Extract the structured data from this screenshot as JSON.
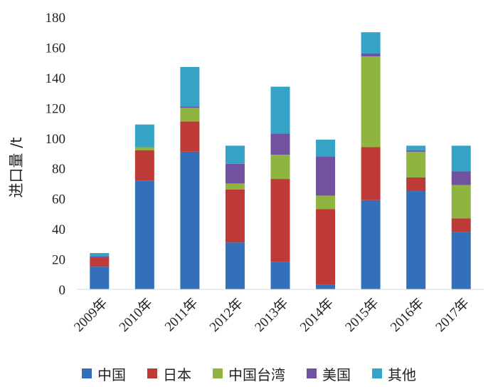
{
  "chart_data": {
    "type": "bar",
    "stacked": true,
    "ylabel": "进口量 /t",
    "ylim": [
      0,
      180
    ],
    "yticks": [
      0,
      20,
      40,
      60,
      80,
      100,
      120,
      140,
      160,
      180
    ],
    "categories": [
      "2009年",
      "2010年",
      "2011年",
      "2012年",
      "2013年",
      "2014年",
      "2015年",
      "2016年",
      "2017年"
    ],
    "series": [
      {
        "name": "中国",
        "color": "#3470BA",
        "values": [
          15,
          72,
          91,
          31,
          18,
          3,
          59,
          65,
          38
        ]
      },
      {
        "name": "日本",
        "color": "#BE3A36",
        "values": [
          6,
          20,
          20,
          35,
          55,
          50,
          35,
          9,
          9
        ]
      },
      {
        "name": "中国台湾",
        "color": "#8FB43F",
        "values": [
          0,
          2,
          9,
          4,
          16,
          9,
          60,
          17,
          22
        ]
      },
      {
        "name": "美国",
        "color": "#7152A0",
        "values": [
          1,
          0,
          1,
          13,
          14,
          26,
          2,
          1,
          9
        ]
      },
      {
        "name": "其他",
        "color": "#35A3C6",
        "values": [
          2,
          15,
          26,
          12,
          31,
          11,
          14,
          3,
          17
        ]
      }
    ],
    "legend_position": "bottom"
  }
}
